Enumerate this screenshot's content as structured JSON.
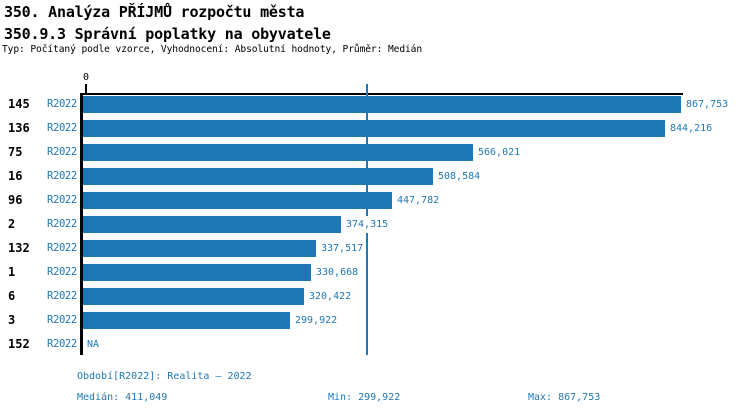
{
  "header": {
    "title_line1": "350. Analýza PŘÍJMŮ rozpočtu města",
    "title_line2": "350.9.3 Správní poplatky na obyvatele",
    "subtitle": "Typ: Počítaný podle vzorce, Vyhodnocení: Absolutní hodnoty, Průměr: Medián"
  },
  "chart_data": {
    "type": "bar",
    "orientation": "horizontal",
    "title": "350.9.3 Správní poplatky na obyvatele",
    "xlabel": "",
    "ylabel": "",
    "xlim": [
      0,
      880000
    ],
    "zero_label": "0",
    "grid": false,
    "median_value": 411049,
    "colors": {
      "bar": "#1f77b4",
      "blue_text": "#1f77b4",
      "axis": "#000000"
    },
    "rows": [
      {
        "category": "145",
        "series": "R2022",
        "value": 867753,
        "label": "867,753"
      },
      {
        "category": "136",
        "series": "R2022",
        "value": 844216,
        "label": "844,216"
      },
      {
        "category": "75",
        "series": "R2022",
        "value": 566021,
        "label": "566,021"
      },
      {
        "category": "16",
        "series": "R2022",
        "value": 508584,
        "label": "508,584"
      },
      {
        "category": "96",
        "series": "R2022",
        "value": 447782,
        "label": "447,782"
      },
      {
        "category": "2",
        "series": "R2022",
        "value": 374315,
        "label": "374,315"
      },
      {
        "category": "132",
        "series": "R2022",
        "value": 337517,
        "label": "337,517"
      },
      {
        "category": "1",
        "series": "R2022",
        "value": 330668,
        "label": "330,668"
      },
      {
        "category": "6",
        "series": "R2022",
        "value": 320422,
        "label": "320,422"
      },
      {
        "category": "3",
        "series": "R2022",
        "value": 299922,
        "label": "299,922"
      },
      {
        "category": "152",
        "series": "R2022",
        "value": null,
        "label": "NA"
      }
    ]
  },
  "footer": {
    "period": "Období[R2022]: Realita – 2022",
    "median": "Medián: 411,049",
    "min": "Min: 299,922",
    "max": "Max: 867,753"
  }
}
